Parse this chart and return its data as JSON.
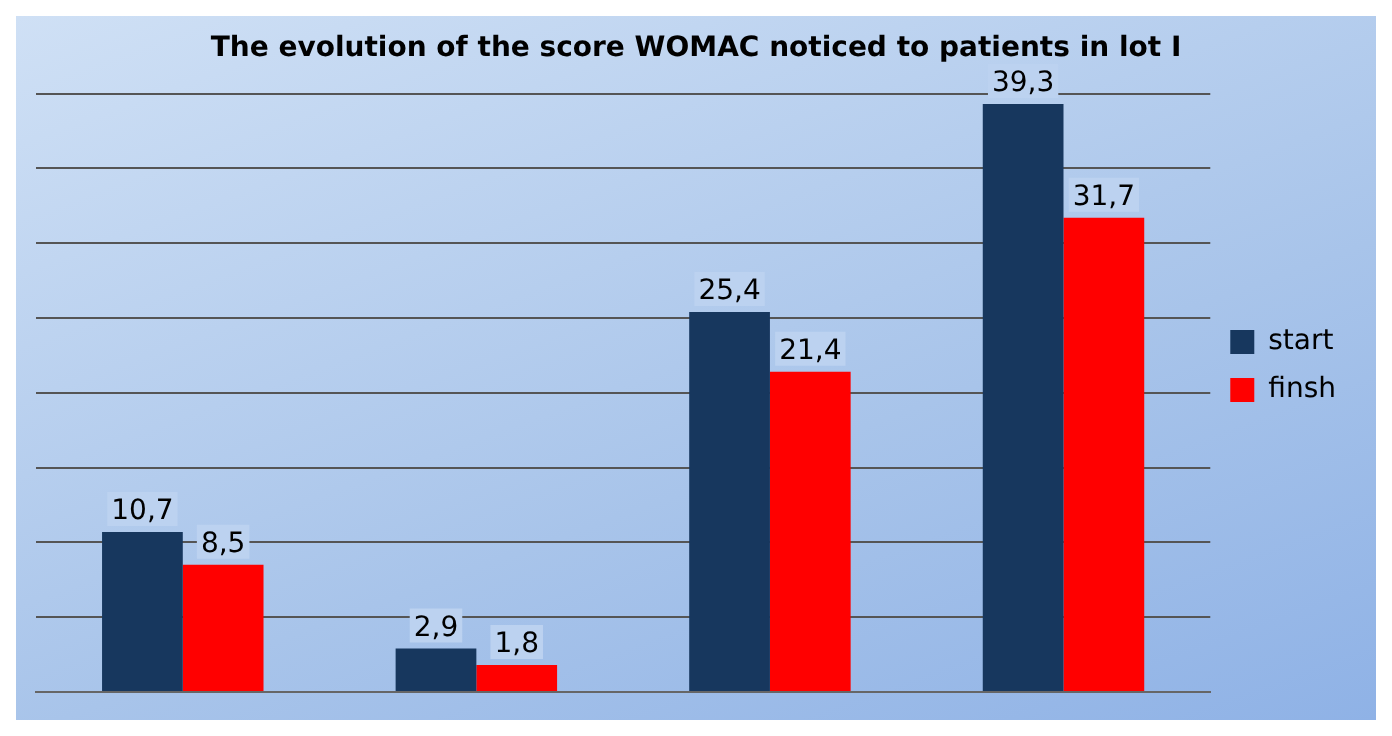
{
  "chart_data": {
    "type": "bar",
    "title": "The evolution of the score WOMAC noticed to patients in lot I",
    "categories": [
      null,
      null,
      null,
      null
    ],
    "series": [
      {
        "name": "start",
        "color": "#17375e",
        "values": [
          10.7,
          2.9,
          25.4,
          39.3
        ],
        "value_labels": [
          "10,7",
          "2,9",
          "25,4",
          "39,3"
        ]
      },
      {
        "name": "finsh",
        "color": "#ff0000",
        "values": [
          8.5,
          1.8,
          21.4,
          31.7
        ],
        "value_labels": [
          "8,5",
          "1,8",
          "21,4",
          "31,7"
        ]
      }
    ],
    "ylim": [
      0,
      40
    ],
    "yticks": [
      0,
      5,
      10,
      15,
      20,
      25,
      30,
      35,
      40
    ],
    "tick_labels": false,
    "grid": "y",
    "legend": "right"
  }
}
